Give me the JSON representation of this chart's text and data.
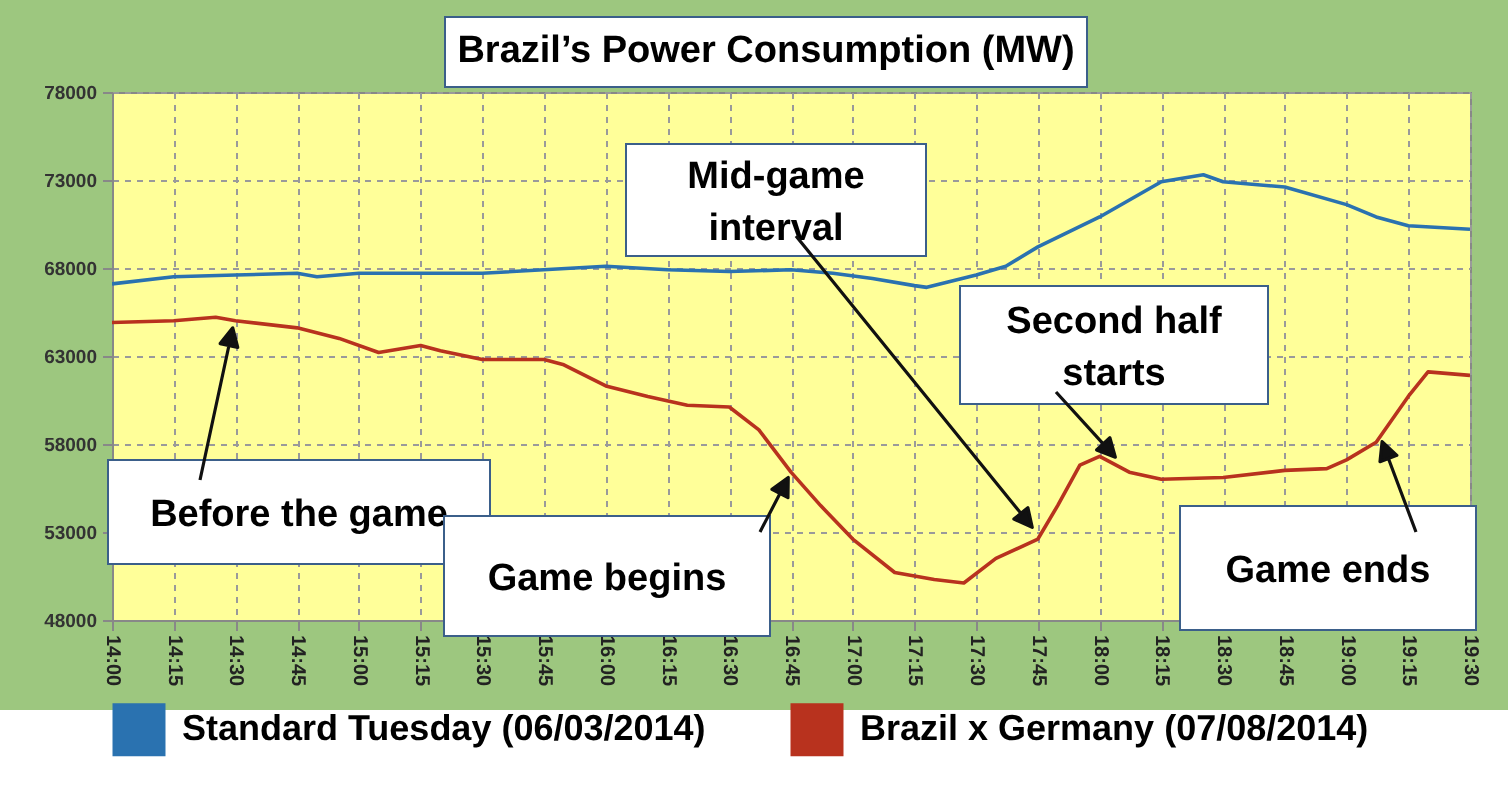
{
  "chart_data": {
    "type": "line",
    "title": "Brazil’s Power Consumption (MW)",
    "xlim": [
      14,
      19.5
    ],
    "xticks": [
      {
        "value": 14,
        "label": "14:00"
      },
      {
        "value": 14.25,
        "label": "14:15"
      },
      {
        "value": 14.5,
        "label": "14:30"
      },
      {
        "value": 14.75,
        "label": "14:45"
      },
      {
        "value": 15,
        "label": "15:00"
      },
      {
        "value": 15.25,
        "label": "15:15"
      },
      {
        "value": 15.5,
        "label": "15:30"
      },
      {
        "value": 15.75,
        "label": "15:45"
      },
      {
        "value": 16,
        "label": "16:00"
      },
      {
        "value": 16.25,
        "label": "16:15"
      },
      {
        "value": 16.5,
        "label": "16:30"
      },
      {
        "value": 16.75,
        "label": "16:45"
      },
      {
        "value": 17,
        "label": "17:00"
      },
      {
        "value": 17.25,
        "label": "17:15"
      },
      {
        "value": 17.5,
        "label": "17:30"
      },
      {
        "value": 17.75,
        "label": "17:45"
      },
      {
        "value": 18,
        "label": "18:00"
      },
      {
        "value": 18.25,
        "label": "18:15"
      },
      {
        "value": 18.5,
        "label": "18:30"
      },
      {
        "value": 18.75,
        "label": "18:45"
      },
      {
        "value": 19,
        "label": "19:00"
      },
      {
        "value": 19.25,
        "label": "19:15"
      },
      {
        "value": 19.5,
        "label": "19:30"
      }
    ],
    "ylim": [
      48000,
      78000
    ],
    "yticks": [
      48000,
      53000,
      58000,
      63000,
      68000,
      73000,
      78000
    ],
    "grid": true,
    "legend": "bottom",
    "line_style": "solid",
    "series": [
      {
        "name": "Standard Tuesday (06/03/2014)",
        "color": "#2a72b0",
        "x": [
          14,
          14.25,
          14.5,
          14.75,
          14.83,
          15,
          15.5,
          16,
          16.25,
          16.5,
          16.75,
          16.92,
          17.08,
          17.25,
          17.3,
          17.5,
          17.62,
          17.75,
          18,
          18.25,
          18.42,
          18.5,
          18.75,
          19,
          19.12,
          19.25,
          19.5
        ],
        "values": [
          67100,
          67500,
          67600,
          67700,
          67500,
          67700,
          67700,
          68100,
          67900,
          67800,
          67900,
          67700,
          67400,
          67000,
          66900,
          67600,
          68100,
          69200,
          70900,
          72900,
          73300,
          72900,
          72600,
          71600,
          70900,
          70400,
          70200
        ]
      },
      {
        "name": "Brazil x Germany (07/08/2014)",
        "color": "#b8321e",
        "x": [
          14,
          14.25,
          14.42,
          14.5,
          14.75,
          14.92,
          15.08,
          15.25,
          15.33,
          15.5,
          15.75,
          15.83,
          16,
          16.17,
          16.33,
          16.5,
          16.62,
          16.75,
          16.87,
          17,
          17.17,
          17.33,
          17.45,
          17.58,
          17.75,
          17.83,
          17.92,
          18,
          18.12,
          18.25,
          18.5,
          18.75,
          18.92,
          19,
          19.12,
          19.25,
          19.33,
          19.5
        ],
        "values": [
          64900,
          65000,
          65200,
          65000,
          64600,
          64000,
          63200,
          63600,
          63300,
          62800,
          62800,
          62500,
          61300,
          60700,
          60200,
          60100,
          58800,
          56400,
          54500,
          52600,
          50700,
          50300,
          50100,
          51500,
          52600,
          54500,
          56800,
          57300,
          56400,
          56000,
          56100,
          56500,
          56600,
          57100,
          58100,
          60700,
          62100,
          61900
        ]
      }
    ],
    "annotations": [
      "Before the game",
      {
        "text": "Game begins",
        "x": 16.75,
        "y": 56400
      },
      "Mid-game interval",
      {
        "text": "Second half starts",
        "x": 18.08,
        "y": 57000
      },
      "Game ends"
    ]
  }
}
